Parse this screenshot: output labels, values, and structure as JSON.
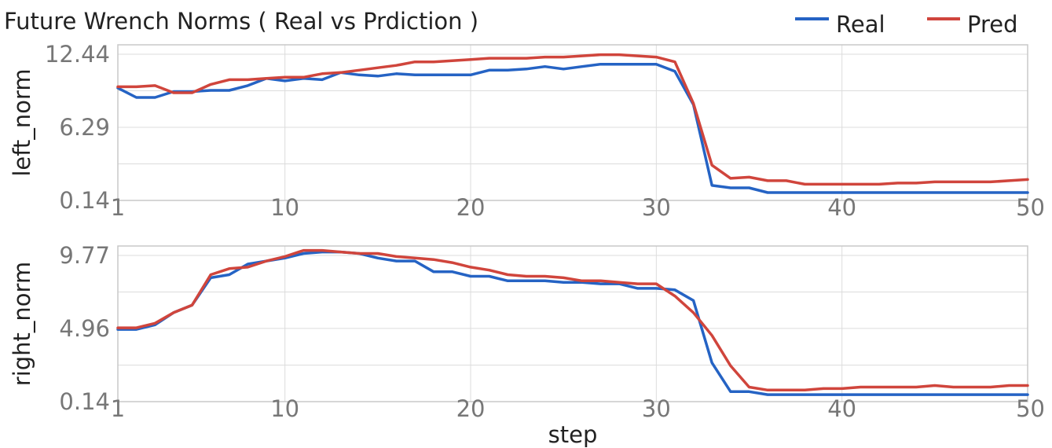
{
  "chart_data": {
    "type": "line",
    "title": "Future Wrench Norms ( Real vs Prdiction )",
    "xlabel": "step",
    "legend": {
      "placement": "top-right",
      "entries": [
        {
          "name": "Real",
          "color": "#2563c4"
        },
        {
          "name": "Pred",
          "color": "#d0453c"
        }
      ]
    },
    "x": [
      1,
      2,
      3,
      4,
      5,
      6,
      7,
      8,
      9,
      10,
      11,
      12,
      13,
      14,
      15,
      16,
      17,
      18,
      19,
      20,
      21,
      22,
      23,
      24,
      25,
      26,
      27,
      28,
      29,
      30,
      31,
      32,
      33,
      34,
      35,
      36,
      37,
      38,
      39,
      40,
      41,
      42,
      43,
      44,
      45,
      46,
      47,
      48,
      49,
      50
    ],
    "xlim": [
      1,
      50
    ],
    "xticks": [
      "1",
      "10",
      "20",
      "30",
      "40",
      "50"
    ],
    "grid": true,
    "panels": [
      {
        "ylabel": "left_norm",
        "ylim": [
          0.14,
          12.44
        ],
        "yticks": [
          "0.14",
          "6.29",
          "12.44"
        ],
        "series": [
          {
            "name": "Real",
            "color": "#2563c4",
            "values": [
              9.6,
              8.8,
              8.8,
              9.3,
              9.3,
              9.4,
              9.4,
              9.8,
              10.4,
              10.2,
              10.4,
              10.3,
              10.9,
              10.7,
              10.6,
              10.8,
              10.7,
              10.7,
              10.7,
              10.7,
              11.1,
              11.1,
              11.2,
              11.4,
              11.2,
              11.4,
              11.6,
              11.6,
              11.6,
              11.6,
              11.0,
              8.2,
              1.4,
              1.2,
              1.2,
              0.8,
              0.8,
              0.8,
              0.8,
              0.8,
              0.8,
              0.8,
              0.8,
              0.8,
              0.8,
              0.8,
              0.8,
              0.8,
              0.8,
              0.8
            ]
          },
          {
            "name": "Pred",
            "color": "#d0453c",
            "values": [
              9.7,
              9.7,
              9.8,
              9.2,
              9.2,
              9.9,
              10.3,
              10.3,
              10.4,
              10.5,
              10.5,
              10.8,
              10.9,
              11.1,
              11.3,
              11.5,
              11.8,
              11.8,
              11.9,
              12.0,
              12.1,
              12.1,
              12.1,
              12.2,
              12.2,
              12.3,
              12.4,
              12.4,
              12.3,
              12.2,
              11.8,
              8.3,
              3.1,
              2.0,
              2.1,
              1.8,
              1.8,
              1.5,
              1.5,
              1.5,
              1.5,
              1.5,
              1.6,
              1.6,
              1.7,
              1.7,
              1.7,
              1.7,
              1.8,
              1.9
            ]
          }
        ]
      },
      {
        "ylabel": "right_norm",
        "ylim": [
          0.14,
          9.77
        ],
        "yticks": [
          "0.14",
          "4.96",
          "9.77"
        ],
        "series": [
          {
            "name": "Real",
            "color": "#2563c4",
            "values": [
              4.9,
              4.9,
              5.2,
              6.0,
              6.5,
              8.3,
              8.5,
              9.2,
              9.4,
              9.6,
              9.9,
              10.0,
              10.0,
              9.9,
              9.6,
              9.4,
              9.4,
              8.7,
              8.7,
              8.4,
              8.4,
              8.1,
              8.1,
              8.1,
              8.0,
              8.0,
              7.9,
              7.9,
              7.6,
              7.6,
              7.5,
              6.8,
              2.7,
              0.8,
              0.8,
              0.6,
              0.6,
              0.6,
              0.6,
              0.6,
              0.6,
              0.6,
              0.6,
              0.6,
              0.6,
              0.6,
              0.6,
              0.6,
              0.6,
              0.6
            ]
          },
          {
            "name": "Pred",
            "color": "#d0453c",
            "values": [
              5.0,
              5.0,
              5.3,
              6.0,
              6.5,
              8.5,
              8.9,
              9.0,
              9.4,
              9.7,
              10.1,
              10.1,
              10.0,
              9.9,
              9.9,
              9.7,
              9.6,
              9.5,
              9.3,
              9.0,
              8.8,
              8.5,
              8.4,
              8.4,
              8.3,
              8.1,
              8.1,
              8.0,
              7.9,
              7.9,
              7.1,
              6.0,
              4.5,
              2.5,
              1.1,
              0.9,
              0.9,
              0.9,
              1.0,
              1.0,
              1.1,
              1.1,
              1.1,
              1.1,
              1.2,
              1.1,
              1.1,
              1.1,
              1.2,
              1.2
            ]
          }
        ]
      }
    ]
  }
}
